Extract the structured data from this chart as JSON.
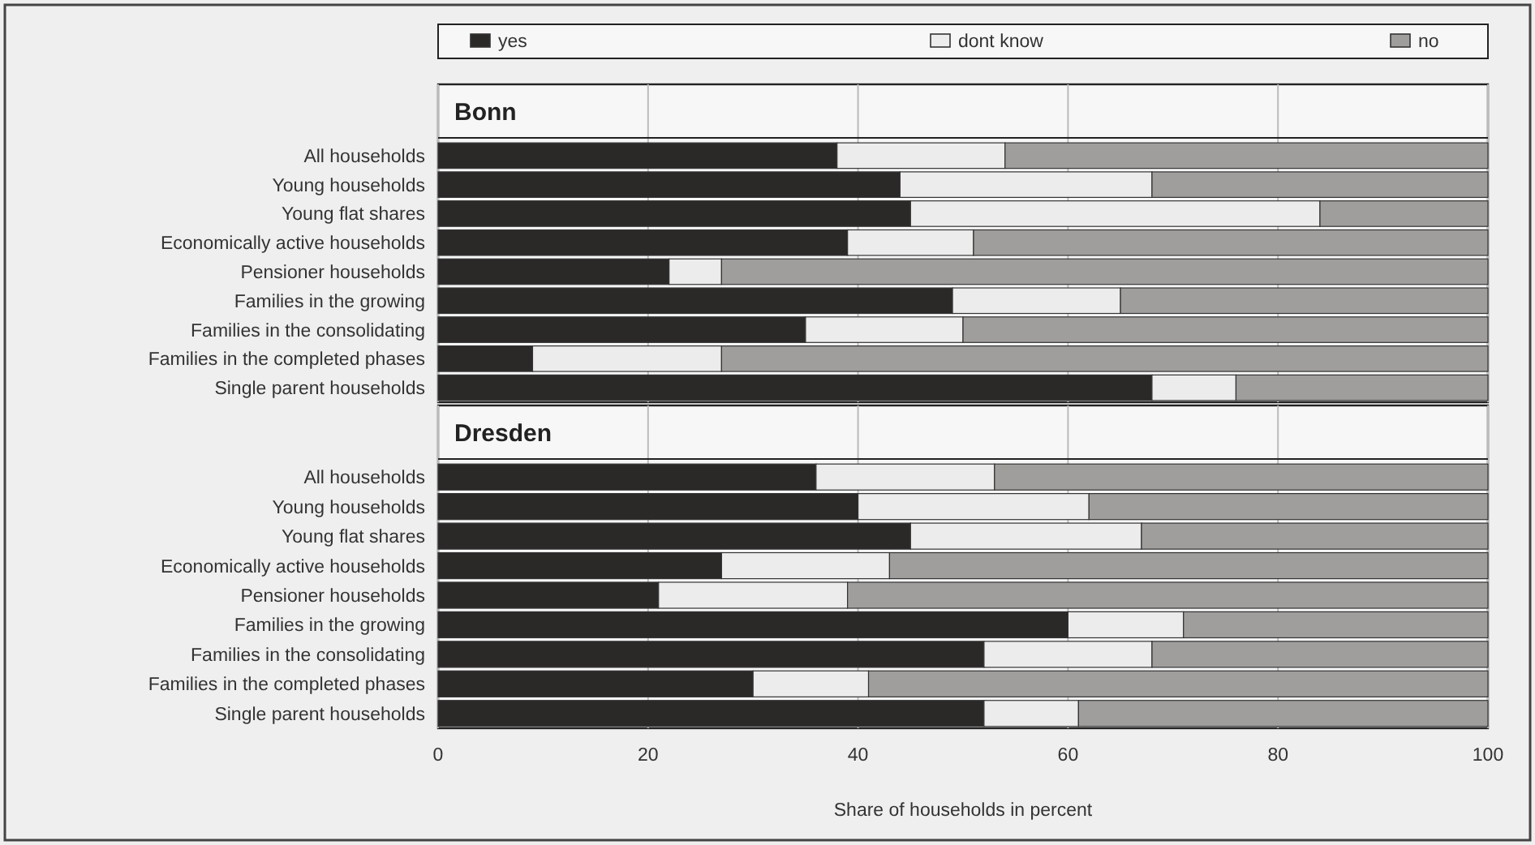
{
  "chart_data": [
    {
      "type": "bar",
      "orientation": "horizontal",
      "stacked": true,
      "title": "Bonn",
      "legend": "top",
      "grid": "x",
      "tick_labels": "y",
      "categories": [
        "All  households",
        "Young households",
        "Young flat shares",
        "Economically active households",
        "Pensioner households",
        "Families in the growing",
        "Families in the consolidating",
        "Families in the completed phases",
        "Single parent households"
      ],
      "xlim": [
        0,
        100
      ],
      "xticks": [
        0,
        20,
        40,
        60,
        80,
        100
      ],
      "series": [
        {
          "name": "yes",
          "color": "#2b2828",
          "values": [
            38,
            44,
            45,
            39,
            22,
            49,
            35,
            9,
            68
          ]
        },
        {
          "name": "dont know",
          "color": "#ececec",
          "values": [
            16,
            24,
            39,
            12,
            5,
            16,
            15,
            18,
            8
          ]
        },
        {
          "name": "no",
          "color": "#a09e9c",
          "values": [
            46,
            32,
            16,
            49,
            73,
            35,
            50,
            73,
            24
          ]
        }
      ]
    },
    {
      "type": "bar",
      "orientation": "horizontal",
      "stacked": true,
      "title": "Dresden",
      "grid": "x",
      "xlabel": "Share of households in percent",
      "categories": [
        "All  households",
        "Young households",
        "Young flat shares",
        "Economically active households",
        "Pensioner households",
        "Families in the growing",
        "Families in the consolidating",
        "Families in the completed phases",
        "Single parent households"
      ],
      "xlim": [
        0,
        100
      ],
      "xticks": [
        0,
        20,
        40,
        60,
        80,
        100
      ],
      "series": [
        {
          "color": "#2b2828",
          "values": [
            36,
            40,
            45,
            27,
            21,
            60,
            52,
            30,
            52
          ]
        },
        {
          "color": "#ececec",
          "values": [
            17,
            22,
            22,
            16,
            18,
            11,
            16,
            11,
            9
          ]
        },
        {
          "color": "#a09e9c",
          "values": [
            47,
            38,
            33,
            57,
            61,
            29,
            32,
            59,
            39
          ]
        }
      ]
    }
  ]
}
